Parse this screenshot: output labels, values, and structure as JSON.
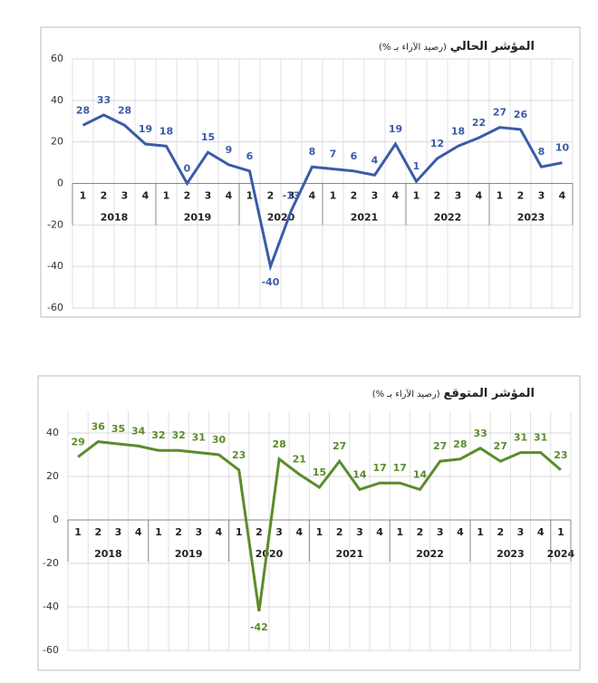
{
  "chart_data": [
    {
      "type": "line",
      "title": "المؤشر الحالي",
      "subtitle": "(رصيد الآراء بـ %)",
      "color": "#3b5ba9",
      "years": [
        "2018",
        "2019",
        "2020",
        "2021",
        "2022",
        "2023"
      ],
      "quarters": [
        [
          "1",
          "2",
          "3",
          "4"
        ],
        [
          "1",
          "2",
          "3",
          "4"
        ],
        [
          "1",
          "2",
          "3",
          "4"
        ],
        [
          "1",
          "2",
          "3",
          "4"
        ],
        [
          "1",
          "2",
          "3",
          "4"
        ],
        [
          "1",
          "2",
          "3",
          "4"
        ]
      ],
      "values": [
        28,
        33,
        28,
        19,
        18,
        0,
        15,
        9,
        6,
        -40,
        -13,
        8,
        7,
        6,
        4,
        19,
        1,
        12,
        18,
        22,
        27,
        26,
        8,
        10
      ],
      "ylim": [
        -60,
        60
      ],
      "yticks": [
        -60,
        -40,
        -20,
        0,
        20,
        40,
        60
      ],
      "grid": true
    },
    {
      "type": "line",
      "title": "المؤشر المتوقع",
      "subtitle": "(رصيد الآراء بـ %)",
      "color": "#5b8c2a",
      "years": [
        "2018",
        "2019",
        "2020",
        "2021",
        "2022",
        "2023",
        "2024"
      ],
      "quarters": [
        [
          "1",
          "2",
          "3",
          "4"
        ],
        [
          "1",
          "2",
          "3",
          "4"
        ],
        [
          "1",
          "2",
          "3",
          "4"
        ],
        [
          "1",
          "2",
          "3",
          "4"
        ],
        [
          "1",
          "2",
          "3",
          "4"
        ],
        [
          "1",
          "2",
          "3",
          "4"
        ],
        [
          "1"
        ]
      ],
      "values": [
        29,
        36,
        35,
        34,
        32,
        32,
        31,
        30,
        23,
        -42,
        28,
        21,
        15,
        27,
        14,
        17,
        17,
        14,
        27,
        28,
        33,
        27,
        31,
        31,
        23
      ],
      "ylim": [
        -60,
        50
      ],
      "yticks": [
        -60,
        -40,
        -20,
        0,
        20,
        40
      ],
      "grid": true
    }
  ]
}
